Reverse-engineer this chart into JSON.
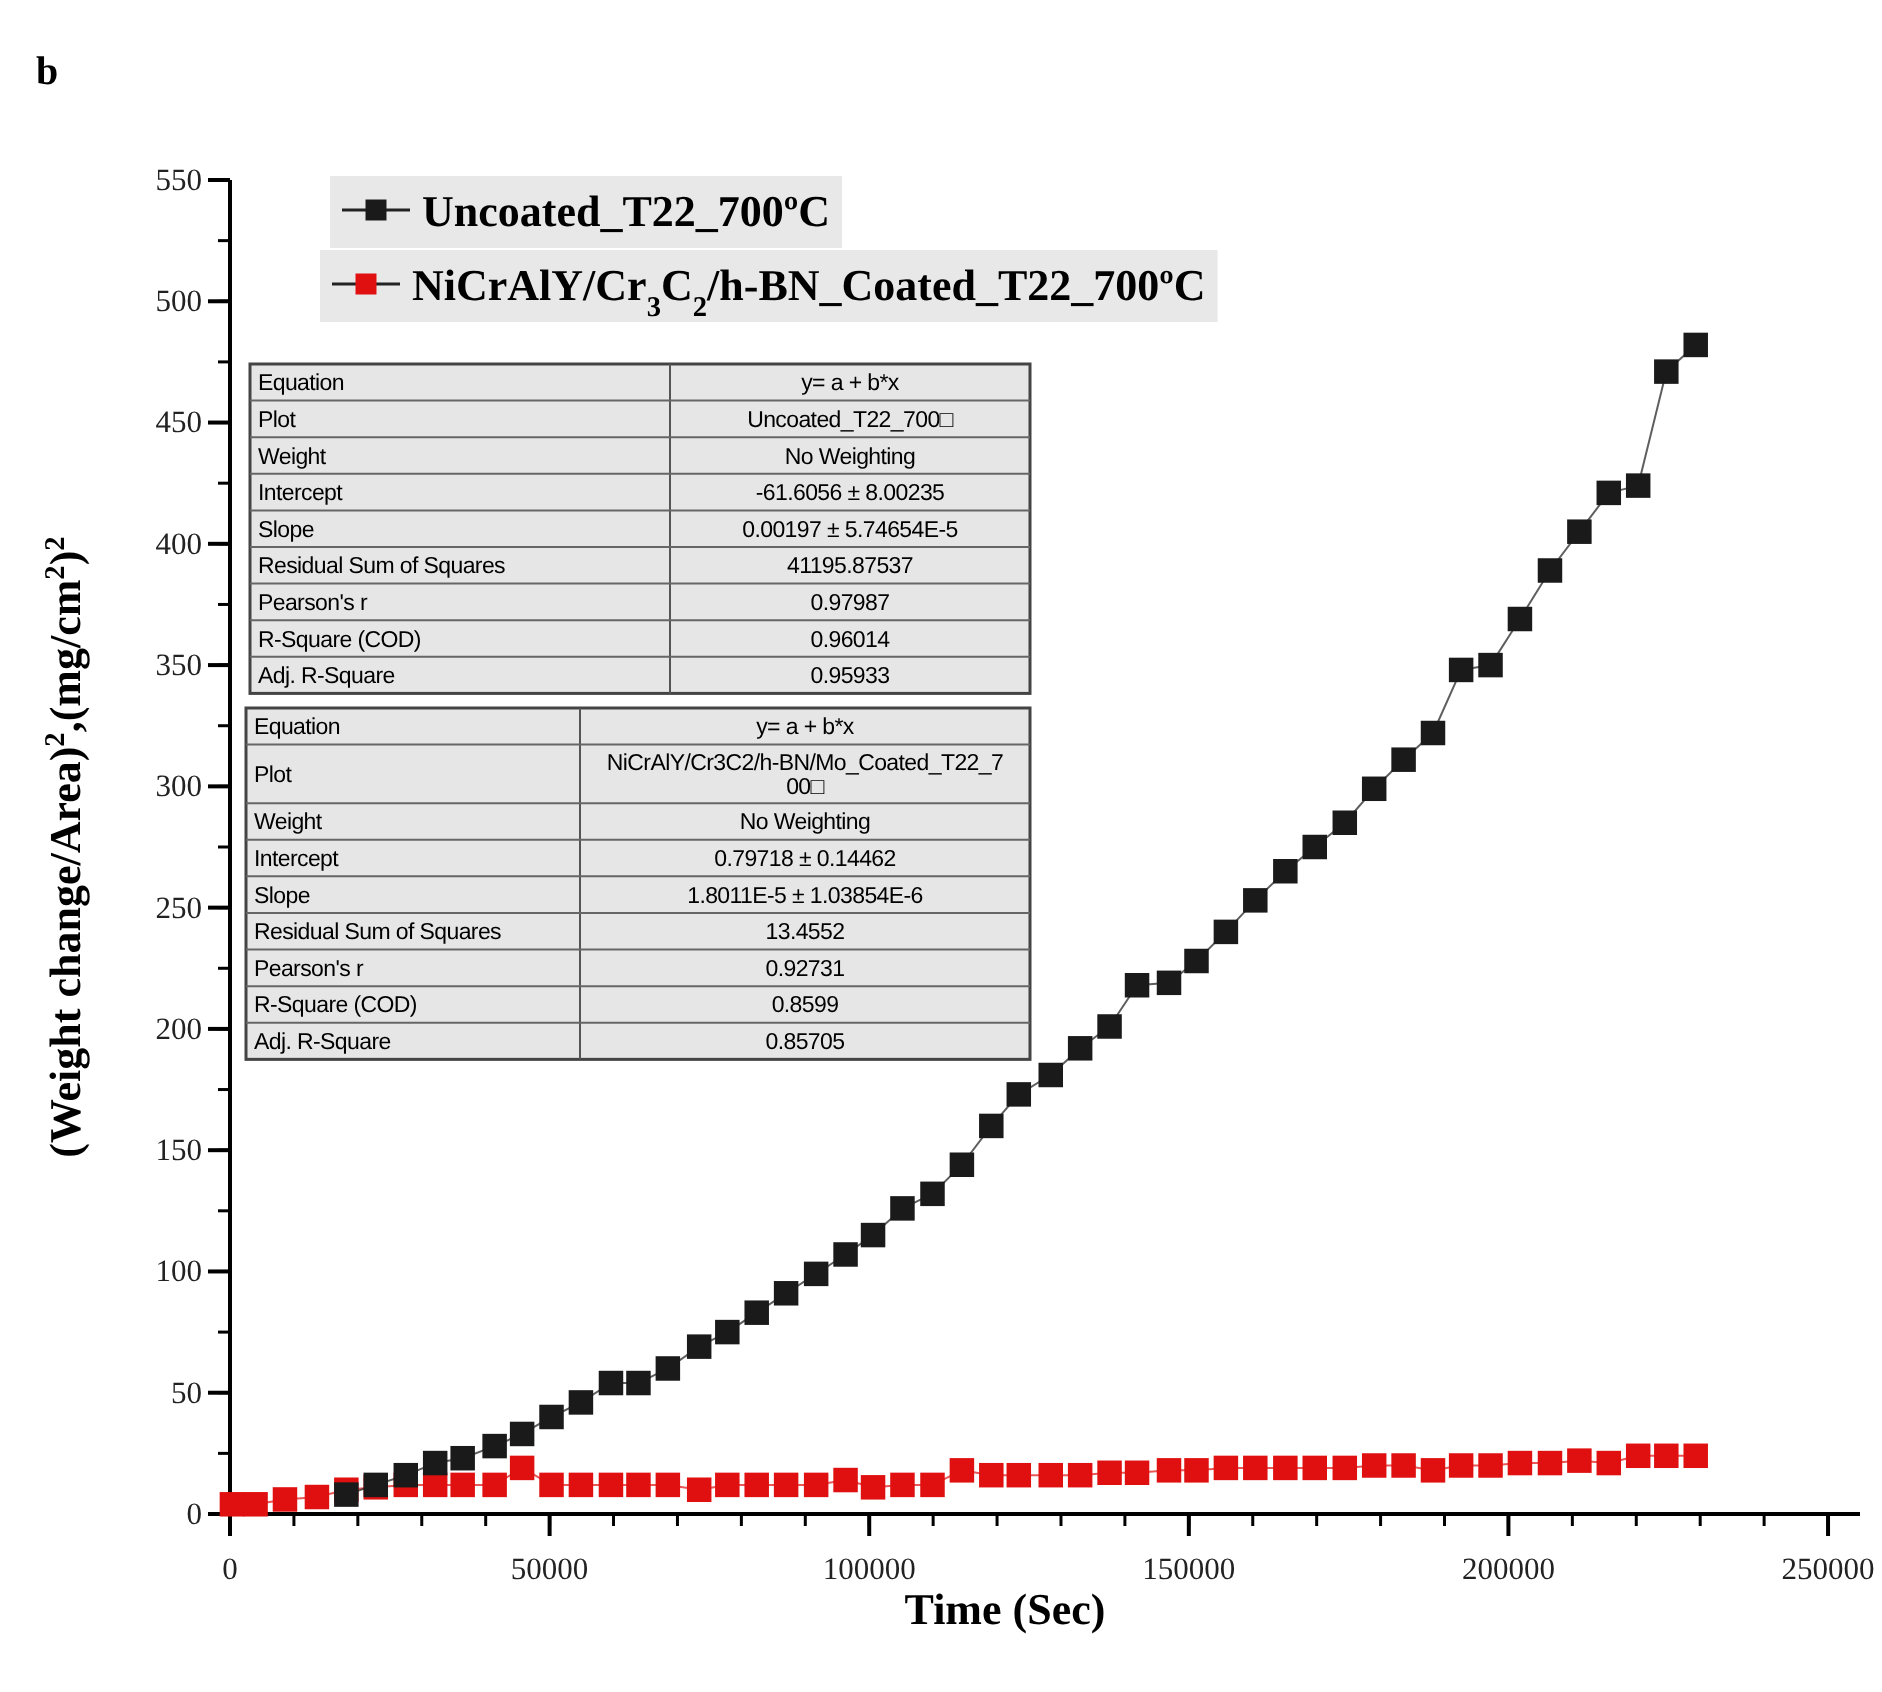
{
  "chart_data": {
    "type": "line",
    "title": "b",
    "xlabel": "Time (Sec)",
    "ylabel": "(Weight change/Area)$^{2}$,(mg/cm$^{2}$)$^{2}$",
    "x": [
      300,
      4000,
      8600,
      13600,
      18200,
      22800,
      27500,
      32100,
      36400,
      41400,
      45700,
      50300,
      54900,
      59600,
      63900,
      68500,
      73400,
      77800,
      82400,
      87000,
      91700,
      96300,
      100600,
      105200,
      109900,
      114500,
      119100,
      123400,
      128400,
      133000,
      137600,
      141900,
      146900,
      151200,
      155800,
      160400,
      165100,
      169700,
      174400,
      179000,
      183600,
      188200,
      192600,
      197200,
      201800,
      206500,
      211100,
      215700,
      220300,
      224700,
      229300
    ],
    "series": [
      {
        "name": "Uncoated_T22_700ºC",
        "color": "#1a1a1a",
        "values": [
          null,
          null,
          null,
          null,
          8,
          12,
          16,
          21,
          23,
          28,
          33,
          40,
          46,
          54,
          54,
          60,
          69,
          75,
          83,
          91,
          99,
          107,
          115,
          126,
          132,
          144,
          160,
          173,
          181,
          192,
          201,
          218,
          219,
          228,
          240,
          253,
          265,
          275,
          285,
          299,
          311,
          322,
          348,
          350,
          369,
          389,
          405,
          421,
          424,
          471,
          482
        ]
      },
      {
        "name": "NiCrAlY/Cr$_{3}$C$_{2}$/h-BN_Coated_T22_700ºC",
        "color": "#e01010",
        "values": [
          4,
          4,
          6,
          7,
          10,
          11,
          12,
          12,
          12,
          12,
          19,
          12,
          12,
          12,
          12,
          12,
          10,
          12,
          12,
          12,
          12,
          14,
          11,
          12,
          12,
          18,
          16,
          16,
          16,
          16,
          17,
          17,
          18,
          18,
          19,
          19,
          19,
          19,
          19,
          20,
          20,
          18,
          20,
          20,
          21,
          21,
          22,
          21,
          24,
          24,
          24
        ]
      }
    ],
    "xlim": [
      0,
      255000
    ],
    "xticks": [
      0,
      50000,
      100000,
      150000,
      200000,
      250000
    ],
    "ylim": [
      0,
      550
    ],
    "yticks": [
      0,
      50,
      100,
      150,
      200,
      250,
      300,
      350,
      400,
      450,
      500,
      550
    ],
    "marker": "square",
    "line_style": "solid",
    "grid": false,
    "legend": "top left",
    "annotations": [
      "Equation",
      "y= a + b*x",
      "Plot",
      "Uncoated_T22_700□",
      "Weight",
      "No Weighting",
      "Intercept",
      "-61.6056 ± 8.00235",
      "Slope",
      "0.00197 ± 5.74654E-5",
      "Residual Sum of Squares",
      "41195.87537",
      "Pearson's r",
      "0.97987",
      "R-Square (COD)",
      "0.96014",
      "Adj. R-Square",
      "0.95933",
      "Equation",
      "y= a + b*x",
      "Plot",
      "NiCrAlY/Cr3C2/h-BN/Mo_Coated_T22_700□",
      "Weight",
      "No Weighting",
      "Intercept",
      "0.79718 ± 0.14462",
      "Slope",
      "1.8011E-5 ± 1.03854E-6",
      "Residual Sum of Squares",
      "13.4552",
      "Pearson's r",
      "0.92731",
      "R-Square (COD)",
      "0.8599",
      "Adj. R-Square",
      "0.85705"
    ]
  }
}
